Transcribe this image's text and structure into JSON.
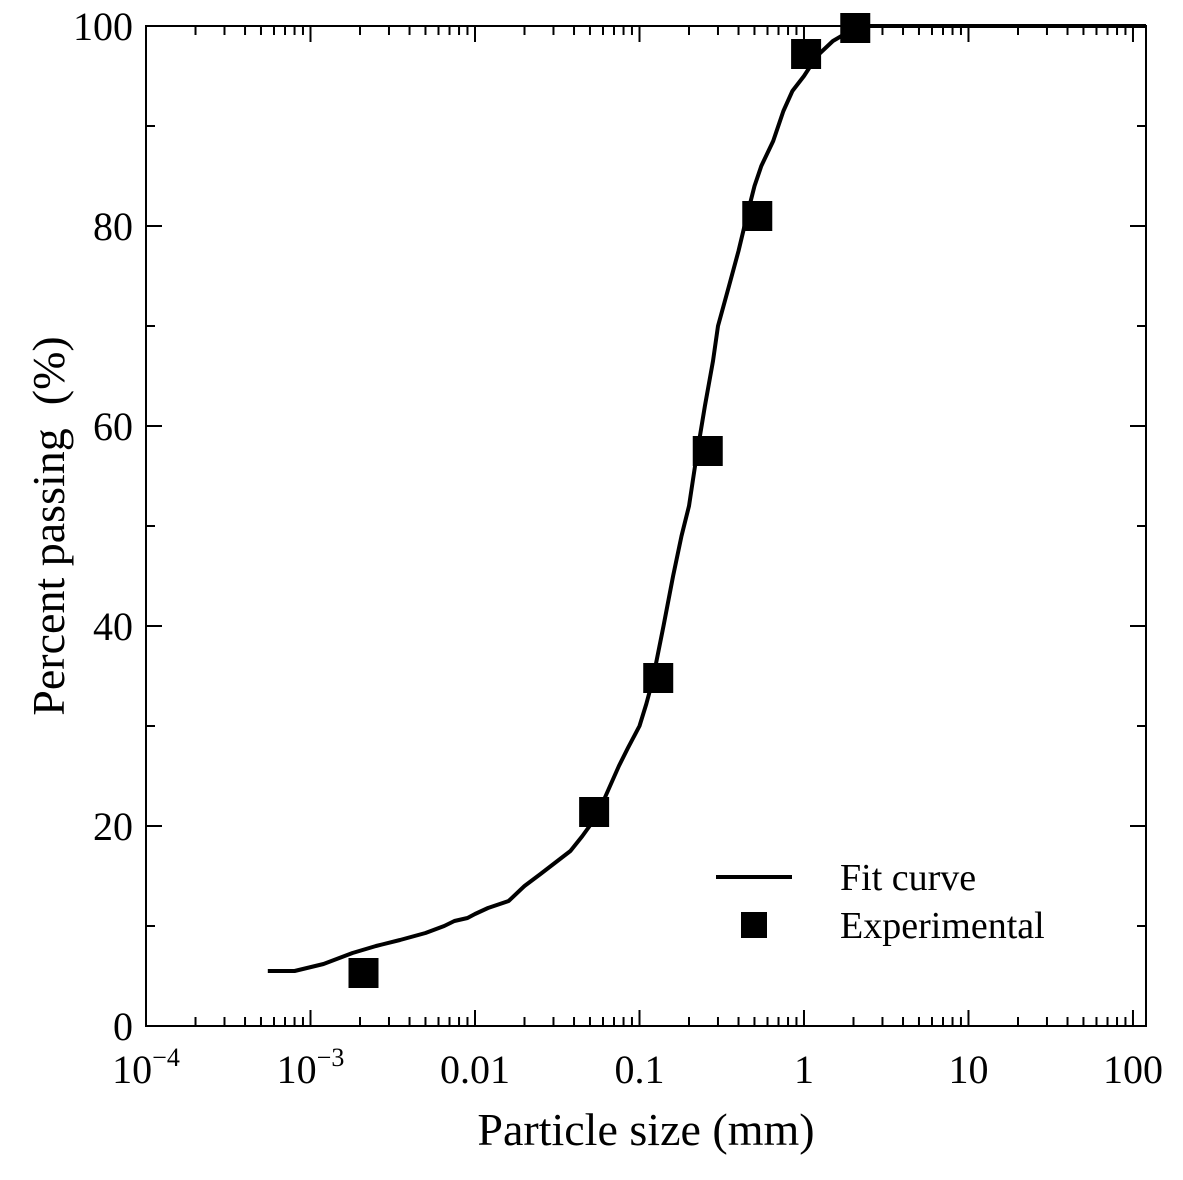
{
  "chart_data": {
    "type": "scatter",
    "title": "",
    "xlabel": "Particle size (mm)",
    "ylabel": "Percent passing  (%)",
    "xscale": "log",
    "xlim": [
      0.0001,
      120
    ],
    "ylim": [
      0,
      100
    ],
    "x_ticks": [
      {
        "value": 0.0001,
        "base": "10",
        "exp": "−4"
      },
      {
        "value": 0.001,
        "base": "10",
        "exp": "−3"
      },
      {
        "value": 0.01,
        "label": "0.01"
      },
      {
        "value": 0.1,
        "label": "0.1"
      },
      {
        "value": 1,
        "label": "1"
      },
      {
        "value": 10,
        "label": "10"
      },
      {
        "value": 100,
        "label": "100"
      }
    ],
    "y_ticks": [
      "0",
      "20",
      "40",
      "60",
      "80",
      "100"
    ],
    "grid": false,
    "legend": {
      "position": "bottom-right"
    },
    "series": [
      {
        "name": "Fit curve",
        "style": "line",
        "color": "#000000",
        "x": [
          0.00055,
          0.0008,
          0.0012,
          0.0018,
          0.0025,
          0.0035,
          0.005,
          0.0065,
          0.0075,
          0.009,
          0.01,
          0.012,
          0.016,
          0.02,
          0.025,
          0.03,
          0.038,
          0.045,
          0.055,
          0.065,
          0.075,
          0.085,
          0.1,
          0.11,
          0.12,
          0.14,
          0.16,
          0.18,
          0.2,
          0.22,
          0.25,
          0.28,
          0.3,
          0.35,
          0.4,
          0.45,
          0.5,
          0.55,
          0.65,
          0.75,
          0.85,
          1.0,
          1.2,
          1.5,
          2.0,
          2.5,
          3.0,
          4.0,
          6.0,
          10,
          20,
          50,
          120
        ],
        "y": [
          5.5,
          5.5,
          6.2,
          7.3,
          8.0,
          8.6,
          9.3,
          10.0,
          10.5,
          10.8,
          11.2,
          11.8,
          12.5,
          14.0,
          15.2,
          16.2,
          17.5,
          19.0,
          21.0,
          23.7,
          26.0,
          27.8,
          30.0,
          32.2,
          34.5,
          40.0,
          45.0,
          49.0,
          52.0,
          56.5,
          62.0,
          66.5,
          70.0,
          74.0,
          77.5,
          81.0,
          84.0,
          86.0,
          88.5,
          91.5,
          93.5,
          95.0,
          97.0,
          98.5,
          99.7,
          100.0,
          100.0,
          100.0,
          100.0,
          100.0,
          100.0,
          100.0,
          100.0
        ]
      },
      {
        "name": "Experimental",
        "style": "square-marker",
        "color": "#000000",
        "x": [
          0.0021,
          0.053,
          0.13,
          0.26,
          0.52,
          1.03,
          2.05
        ],
        "y": [
          5.3,
          21.4,
          34.8,
          57.5,
          81.0,
          97.2,
          99.8
        ]
      }
    ]
  }
}
